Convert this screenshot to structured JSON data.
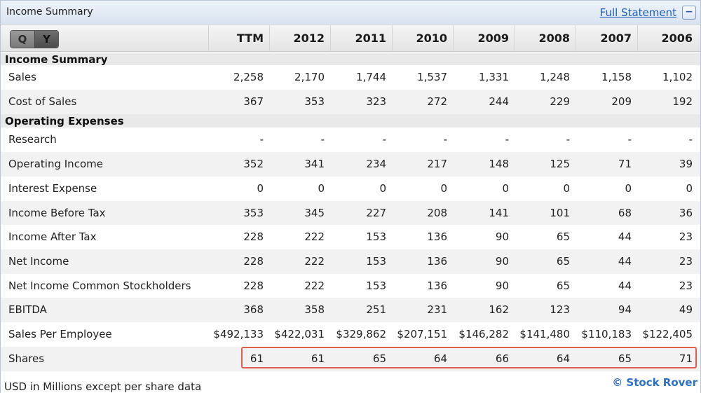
{
  "panel": {
    "title": "Income Summary",
    "full_statement_label": "Full Statement",
    "collapse_label": "−"
  },
  "period_toggle": {
    "q_label": "Q",
    "y_label": "Y",
    "selected": "Y"
  },
  "columns": [
    "TTM",
    "2012",
    "2011",
    "2010",
    "2009",
    "2008",
    "2007",
    "2006"
  ],
  "sections": {
    "income_summary": "Income Summary",
    "operating_expenses": "Operating Expenses"
  },
  "rows": [
    {
      "label": "Sales",
      "values": [
        "2,258",
        "2,170",
        "1,744",
        "1,537",
        "1,331",
        "1,248",
        "1,158",
        "1,102"
      ]
    },
    {
      "label": "Cost of Sales",
      "values": [
        "367",
        "353",
        "323",
        "272",
        "244",
        "229",
        "209",
        "192"
      ]
    },
    {
      "label": "Research",
      "values": [
        "-",
        "-",
        "-",
        "-",
        "-",
        "-",
        "-",
        "-"
      ]
    },
    {
      "label": "Operating Income",
      "values": [
        "352",
        "341",
        "234",
        "217",
        "148",
        "125",
        "71",
        "39"
      ]
    },
    {
      "label": "Interest Expense",
      "values": [
        "0",
        "0",
        "0",
        "0",
        "0",
        "0",
        "0",
        "0"
      ]
    },
    {
      "label": "Income Before Tax",
      "values": [
        "353",
        "345",
        "227",
        "208",
        "141",
        "101",
        "68",
        "36"
      ]
    },
    {
      "label": "Income After Tax",
      "values": [
        "228",
        "222",
        "153",
        "136",
        "90",
        "65",
        "44",
        "23"
      ]
    },
    {
      "label": "Net Income",
      "values": [
        "228",
        "222",
        "153",
        "136",
        "90",
        "65",
        "44",
        "23"
      ]
    },
    {
      "label": "Net Income Common Stockholders",
      "values": [
        "228",
        "222",
        "153",
        "136",
        "90",
        "65",
        "44",
        "23"
      ]
    },
    {
      "label": "EBITDA",
      "values": [
        "368",
        "358",
        "251",
        "231",
        "162",
        "123",
        "94",
        "49"
      ]
    },
    {
      "label": "Sales Per Employee",
      "values": [
        "$492,133",
        "$422,031",
        "$329,862",
        "$207,151",
        "$146,282",
        "$141,480",
        "$110,183",
        "$122,405"
      ]
    },
    {
      "label": "Shares",
      "values": [
        "61",
        "61",
        "65",
        "64",
        "66",
        "64",
        "65",
        "71"
      ]
    }
  ],
  "highlighted_row": "Shares",
  "highlight_color": "#e0604f",
  "footer": {
    "note": "USD in Millions except per share data",
    "brand": "© Stock Rover"
  }
}
